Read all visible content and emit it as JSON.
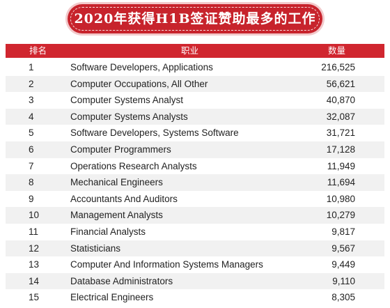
{
  "title": "2020年获得H1B签证赞助最多的工作",
  "headers": {
    "rank": "排名",
    "job": "职业",
    "count": "数量"
  },
  "rows": [
    {
      "rank": "1",
      "job": "Software Developers, Applications",
      "count": "216,525"
    },
    {
      "rank": "2",
      "job": "Computer Occupations, All Other",
      "count": "56,621"
    },
    {
      "rank": "3",
      "job": "Computer Systems Analyst",
      "count": "40,870"
    },
    {
      "rank": "4",
      "job": "Computer Systems Analysts",
      "count": "32,087"
    },
    {
      "rank": "5",
      "job": "Software Developers, Systems Software",
      "count": "31,721"
    },
    {
      "rank": "6",
      "job": "Computer Programmers",
      "count": "17,128"
    },
    {
      "rank": "7",
      "job": "Operations Research Analysts",
      "count": "11,949"
    },
    {
      "rank": "8",
      "job": "Mechanical Engineers",
      "count": "11,694"
    },
    {
      "rank": "9",
      "job": "Accountants And Auditors",
      "count": "10,980"
    },
    {
      "rank": "10",
      "job": "Management Analysts",
      "count": "10,279"
    },
    {
      "rank": "11",
      "job": "Financial Analysts",
      "count": "9,817"
    },
    {
      "rank": "12",
      "job": "Statisticians",
      "count": "9,567"
    },
    {
      "rank": "13",
      "job": "Computer And Information Systems Managers",
      "count": "9,449"
    },
    {
      "rank": "14",
      "job": "Database Administrators",
      "count": "9,110"
    },
    {
      "rank": "15",
      "job": "Electrical Engineers",
      "count": "8,305"
    }
  ],
  "colors": {
    "accent": "#d0262f",
    "stripe": "#f1f1f1"
  }
}
